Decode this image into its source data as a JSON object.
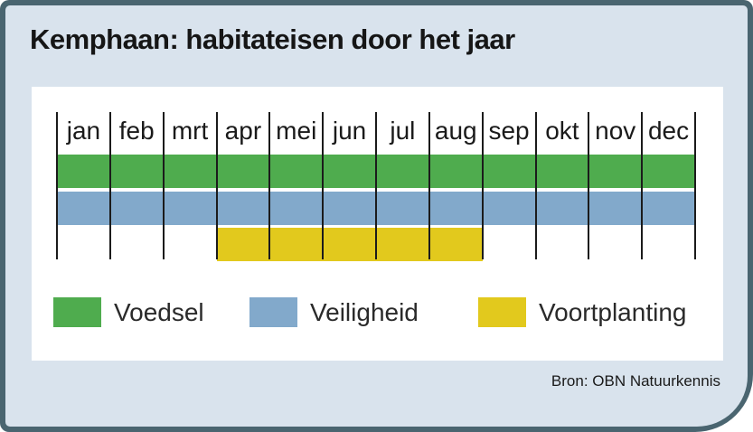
{
  "header": {
    "title": "Kemphaan: habitateisen door het jaar"
  },
  "footer": {
    "source": "Bron: OBN Natuurkennis"
  },
  "colors": {
    "frame_border": "#4a6570",
    "panel_background": "#d9e3ed",
    "card_background": "#ffffff",
    "gridline": "#1b1b1b",
    "voedsel_green": "#4fac4e",
    "veiligheid_blue": "#82a9cb",
    "voortplanting_yellow": "#e2c91d"
  },
  "chart_data": {
    "type": "bar",
    "subtype": "month-range-timeline-gantt",
    "title": "Kemphaan: habitateisen door het jaar",
    "categories": [
      "jan",
      "feb",
      "mrt",
      "apr",
      "mei",
      "jun",
      "jul",
      "aug",
      "sep",
      "okt",
      "nov",
      "dec"
    ],
    "series": [
      {
        "name": "Voedsel",
        "color": "#4fac4e",
        "start_month": "jan",
        "end_month": "dec",
        "start_index": 0,
        "end_index": 12
      },
      {
        "name": "Veiligheid",
        "color": "#82a9cb",
        "start_month": "jan",
        "end_month": "dec",
        "start_index": 0,
        "end_index": 12
      },
      {
        "name": "Voortplanting",
        "color": "#e2c91d",
        "start_month": "apr",
        "end_month": "aug",
        "start_index": 3,
        "end_index": 8
      }
    ],
    "grid": "vertical month separators on",
    "legend_position": "bottom",
    "source": "Bron: OBN Natuurkennis"
  }
}
